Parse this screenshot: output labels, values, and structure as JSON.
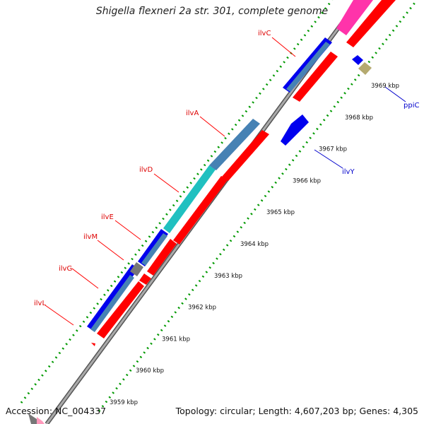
{
  "title": "Shigella flexneri 2a str. 301, complete genome",
  "footer": {
    "accession": "Accession: NC_004337",
    "topology": "Topology: circular; Length: 4,607,203 bp; Genes: 4,305"
  },
  "ruler": {
    "ticks": [
      {
        "kbp": 3959,
        "label": "3959 kbp"
      },
      {
        "kbp": 3960,
        "label": "3960 kbp"
      },
      {
        "kbp": 3961,
        "label": "3961 kbp"
      },
      {
        "kbp": 3962,
        "label": "3962 kbp"
      },
      {
        "kbp": 3963,
        "label": "3963 kbp"
      },
      {
        "kbp": 3964,
        "label": "3964 kbp"
      },
      {
        "kbp": 3965,
        "label": "3965 kbp"
      },
      {
        "kbp": 3966,
        "label": "3966 kbp"
      },
      {
        "kbp": 3967,
        "label": "3967 kbp"
      },
      {
        "kbp": 3968,
        "label": "3968 kbp"
      },
      {
        "kbp": 3969,
        "label": "3969 kbp"
      }
    ]
  },
  "genes": [
    {
      "name": "ilvL",
      "side": "top"
    },
    {
      "name": "ilvG",
      "side": "top"
    },
    {
      "name": "ilvM",
      "side": "top"
    },
    {
      "name": "ilvE",
      "side": "top"
    },
    {
      "name": "ilvD",
      "side": "top"
    },
    {
      "name": "ilvA",
      "side": "top"
    },
    {
      "name": "ilvC",
      "side": "top"
    },
    {
      "name": "ilvY",
      "side": "bottom"
    },
    {
      "name": "ppiC",
      "side": "bottom"
    }
  ],
  "colors": {
    "forward_cds": "#ff0000",
    "forward_gene": "#4682b4",
    "gene_outline_dark": "#0000ee",
    "rrna_cyan": "#20c0c0",
    "reverse_cds": "#0000ee",
    "pseudo_grey": "#777777",
    "pink_feature": "#ff33aa",
    "tan_feature": "#b5aa70",
    "label_top": "#dd0000",
    "label_bottom": "#0000cc",
    "tick_green": "#008800",
    "backbone": "#8c8c8c"
  }
}
